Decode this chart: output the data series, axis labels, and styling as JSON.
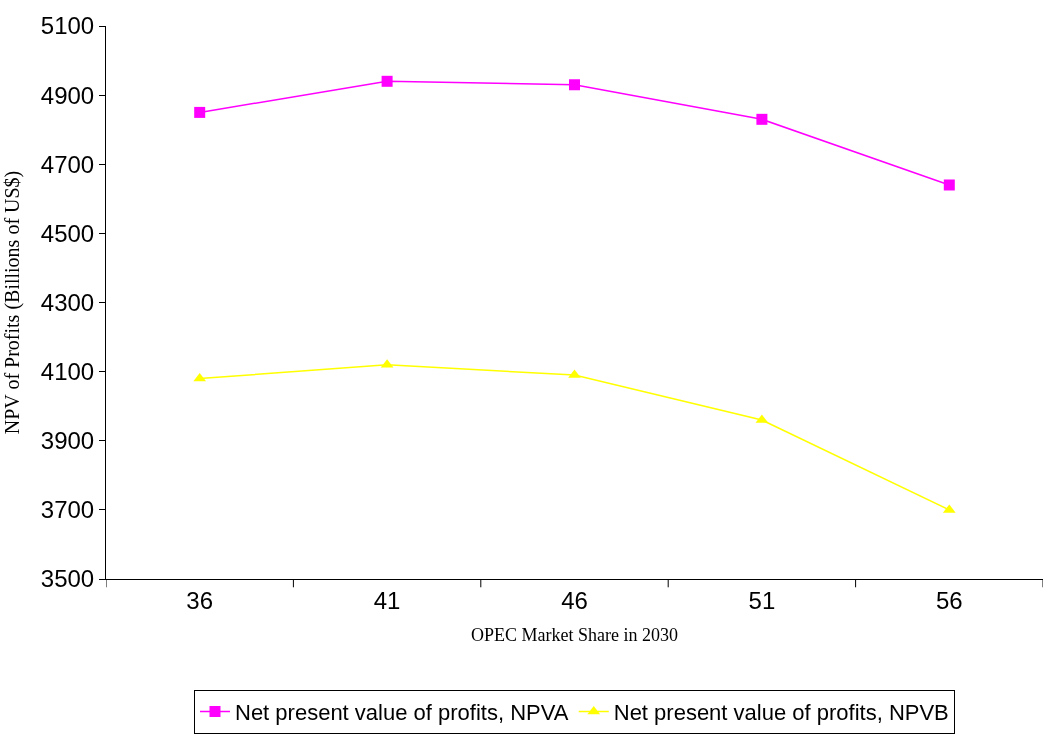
{
  "chart_data": {
    "type": "line",
    "xlabel": "OPEC Market Share in 2030",
    "ylabel": "NPV of Profits (Billions of US$)",
    "categories": [
      "36",
      "41",
      "46",
      "51",
      "56"
    ],
    "series": [
      {
        "name": "Net present value of profits, NPVA",
        "color": "#ff00ff",
        "marker": "square",
        "values": [
          4850,
          4940,
          4930,
          4830,
          4640
        ]
      },
      {
        "name": "Net present value of profits, NPVB",
        "color": "#ffff00",
        "marker": "triangle",
        "values": [
          4080,
          4120,
          4090,
          3960,
          3700
        ]
      }
    ],
    "ylim": [
      3500,
      5100
    ],
    "yticks": [
      3500,
      3700,
      3900,
      4100,
      4300,
      4500,
      4700,
      4900,
      5100
    ],
    "legend": "bottom",
    "line_style": "solid"
  }
}
